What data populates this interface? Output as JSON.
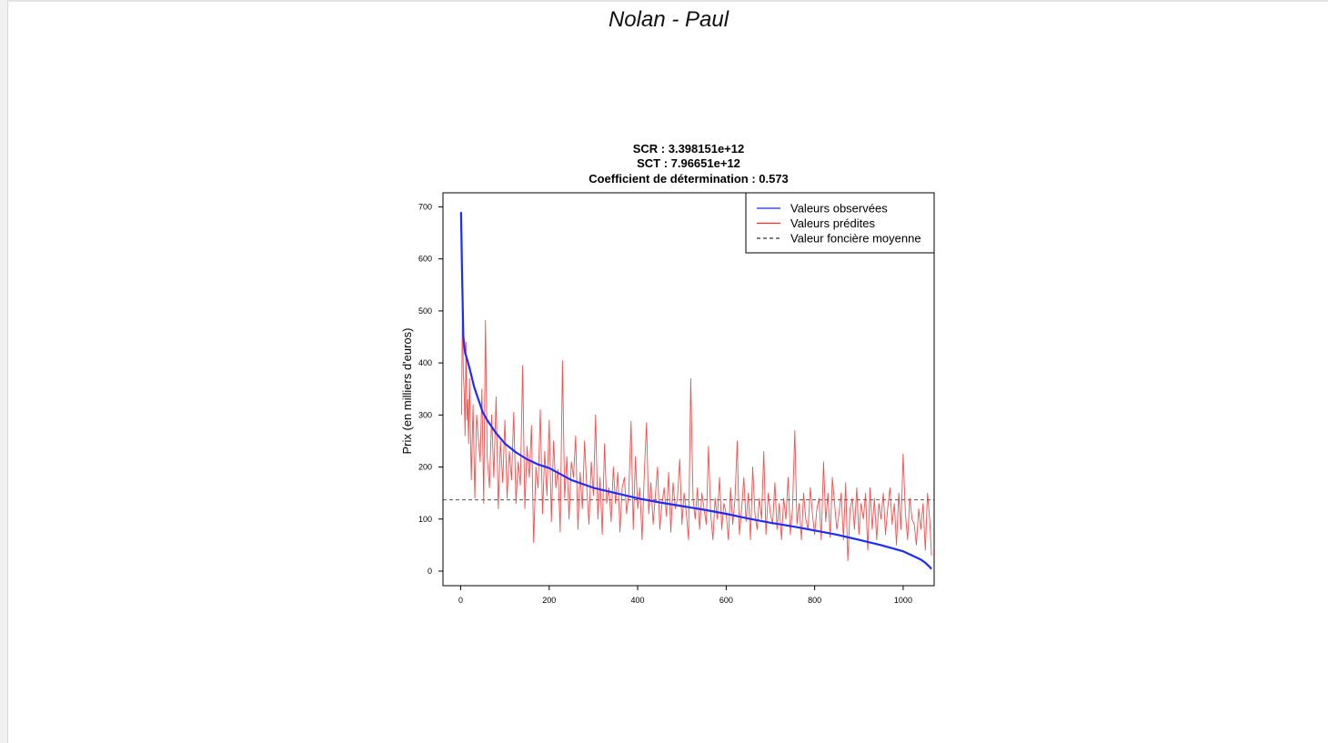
{
  "page": {
    "header": "Nolan - Paul"
  },
  "chart_data": {
    "type": "line",
    "title_lines": [
      "SCR :  3.398151e+12",
      "SCT :  7.96651e+12",
      "Coefficient de détermination :  0.573"
    ],
    "xlabel": "",
    "ylabel": "Prix (en milliers d'euros)",
    "xlim": [
      -40,
      1070
    ],
    "ylim": [
      -28,
      727
    ],
    "x_ticks": [
      0,
      200,
      400,
      600,
      800,
      1000
    ],
    "y_ticks": [
      0,
      100,
      200,
      300,
      400,
      500,
      600,
      700
    ],
    "mean_line": {
      "name": "Valeur foncière moyenne",
      "value": 137,
      "color": "#555555",
      "style": "dashed"
    },
    "legend": {
      "position": "top-right",
      "entries": [
        {
          "name": "Valeurs observées",
          "color": "#1a2cff",
          "style": "solid"
        },
        {
          "name": "Valeurs prédites",
          "color": "#ff2a2a",
          "style": "solid"
        },
        {
          "name": "Valeur foncière moyenne",
          "color": "#333333",
          "style": "dashed"
        }
      ]
    },
    "series": [
      {
        "name": "Valeurs observées",
        "color": "#1a2cff",
        "x": [
          1,
          3,
          6,
          10,
          15,
          20,
          30,
          40,
          50,
          60,
          80,
          100,
          125,
          150,
          175,
          200,
          250,
          300,
          350,
          400,
          450,
          500,
          550,
          600,
          650,
          700,
          750,
          800,
          850,
          900,
          950,
          1000,
          1020,
          1040,
          1050,
          1060,
          1064
        ],
        "y": [
          690,
          580,
          450,
          420,
          405,
          390,
          355,
          330,
          305,
          290,
          265,
          245,
          228,
          215,
          205,
          198,
          175,
          160,
          150,
          140,
          132,
          125,
          118,
          110,
          101,
          93,
          86,
          78,
          70,
          60,
          50,
          38,
          30,
          22,
          16,
          8,
          4
        ]
      },
      {
        "name": "Valeurs prédites",
        "color": "#ff2a2a",
        "x": [
          2,
          4,
          6,
          8,
          10,
          12,
          14,
          16,
          18,
          20,
          24,
          28,
          32,
          36,
          40,
          44,
          48,
          52,
          56,
          60,
          65,
          70,
          75,
          80,
          85,
          90,
          95,
          100,
          105,
          110,
          115,
          120,
          125,
          130,
          135,
          140,
          145,
          150,
          155,
          160,
          165,
          170,
          175,
          180,
          185,
          190,
          195,
          200,
          205,
          210,
          215,
          220,
          225,
          230,
          235,
          240,
          245,
          250,
          255,
          260,
          265,
          270,
          275,
          280,
          285,
          290,
          295,
          300,
          305,
          310,
          315,
          320,
          325,
          330,
          335,
          340,
          345,
          350,
          355,
          360,
          365,
          370,
          375,
          380,
          385,
          390,
          395,
          400,
          405,
          410,
          415,
          420,
          425,
          430,
          435,
          440,
          445,
          450,
          455,
          460,
          465,
          470,
          475,
          480,
          485,
          490,
          495,
          500,
          505,
          510,
          515,
          520,
          525,
          530,
          535,
          540,
          545,
          550,
          555,
          560,
          565,
          570,
          575,
          580,
          585,
          590,
          595,
          600,
          605,
          610,
          615,
          620,
          625,
          630,
          635,
          640,
          645,
          650,
          655,
          660,
          665,
          670,
          675,
          680,
          685,
          690,
          695,
          700,
          705,
          710,
          715,
          720,
          725,
          730,
          735,
          740,
          745,
          750,
          755,
          760,
          765,
          770,
          775,
          780,
          785,
          790,
          795,
          800,
          805,
          810,
          815,
          820,
          825,
          830,
          835,
          840,
          845,
          850,
          855,
          860,
          865,
          870,
          875,
          880,
          885,
          890,
          895,
          900,
          905,
          910,
          915,
          920,
          925,
          930,
          935,
          940,
          945,
          950,
          955,
          960,
          965,
          970,
          975,
          980,
          985,
          990,
          995,
          1000,
          1005,
          1010,
          1015,
          1020,
          1025,
          1030,
          1035,
          1040,
          1045,
          1050,
          1055,
          1060,
          1064
        ],
        "y": [
          300,
          505,
          380,
          340,
          260,
          440,
          290,
          330,
          245,
          370,
          175,
          320,
          140,
          300,
          255,
          210,
          350,
          130,
          482,
          220,
          160,
          300,
          180,
          335,
          120,
          250,
          170,
          290,
          140,
          230,
          175,
          305,
          130,
          210,
          165,
          395,
          120,
          240,
          180,
          280,
          55,
          200,
          160,
          310,
          110,
          230,
          145,
          290,
          95,
          250,
          160,
          195,
          75,
          404,
          140,
          220,
          100,
          210,
          180,
          260,
          80,
          190,
          120,
          250,
          160,
          90,
          210,
          145,
          300,
          100,
          180,
          70,
          245,
          130,
          160,
          95,
          200,
          130,
          190,
          75,
          160,
          180,
          110,
          150,
          288,
          80,
          220,
          120,
          160,
          60,
          190,
          285,
          110,
          170,
          90,
          145,
          200,
          80,
          130,
          160,
          105,
          190,
          75,
          170,
          120,
          140,
          215,
          90,
          150,
          110,
          60,
          370,
          140,
          100,
          160,
          80,
          150,
          120,
          90,
          240,
          110,
          60,
          140,
          100,
          180,
          80,
          130,
          110,
          60,
          160,
          90,
          140,
          250,
          70,
          120,
          180,
          95,
          150,
          60,
          200,
          110,
          80,
          140,
          100,
          230,
          70,
          150,
          110,
          90,
          170,
          80,
          130,
          60,
          140,
          100,
          180,
          70,
          120,
          270,
          90,
          130,
          60,
          150,
          100,
          80,
          160,
          110,
          70,
          120,
          140,
          60,
          210,
          95,
          150,
          65,
          180,
          130,
          80,
          110,
          150,
          60,
          170,
          20,
          120,
          140,
          80,
          160,
          70,
          130,
          100,
          150,
          40,
          160,
          80,
          140,
          60,
          130,
          100,
          150,
          70,
          120,
          160,
          90,
          130,
          50,
          150,
          80,
          225,
          110,
          60,
          140,
          100,
          90,
          50,
          120,
          80,
          130,
          40,
          150,
          100,
          30
        ]
      }
    ]
  }
}
